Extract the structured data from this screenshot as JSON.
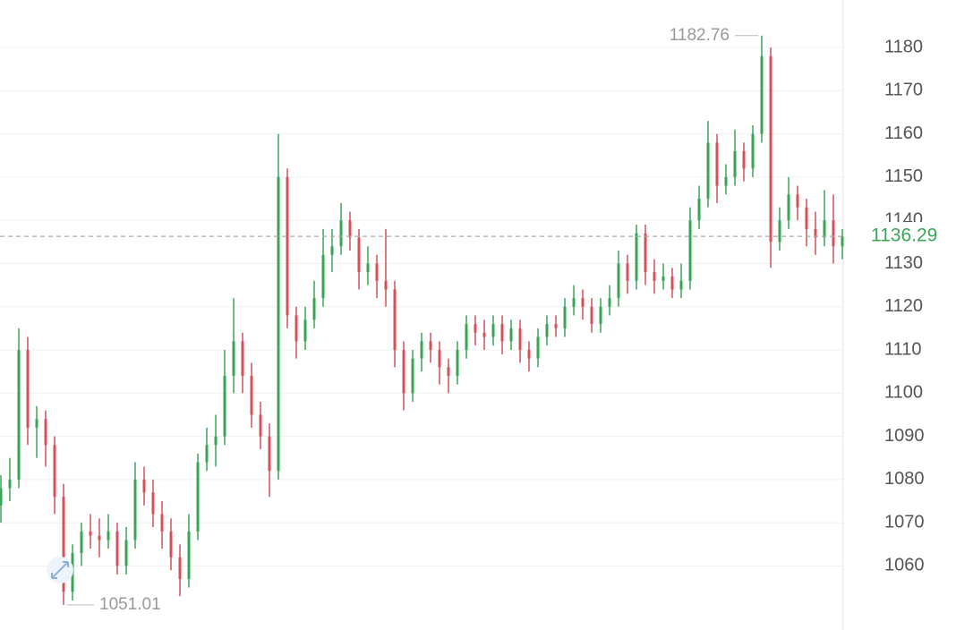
{
  "chart_data": {
    "type": "candlestick",
    "up_color": "#3aa655",
    "down_color": "#d4505a",
    "ylim": [
      1046,
      1191
    ],
    "yticks": [
      1060,
      1070,
      1080,
      1090,
      1100,
      1110,
      1120,
      1130,
      1140,
      1150,
      1160,
      1170,
      1180
    ],
    "grid": true,
    "candles": [
      [
        1074,
        1081,
        1070,
        1078
      ],
      [
        1078,
        1085,
        1075,
        1080
      ],
      [
        1080,
        1115,
        1078,
        1110
      ],
      [
        1110,
        1113,
        1088,
        1092
      ],
      [
        1092,
        1097,
        1085,
        1094
      ],
      [
        1094,
        1096,
        1083,
        1088
      ],
      [
        1088,
        1090,
        1072,
        1076
      ],
      [
        1076,
        1079,
        1051.01,
        1054
      ],
      [
        1054,
        1065,
        1052,
        1063
      ],
      [
        1063,
        1070,
        1060,
        1068
      ],
      [
        1068,
        1072,
        1064,
        1067
      ],
      [
        1067,
        1071,
        1062,
        1066
      ],
      [
        1066,
        1072,
        1064,
        1068
      ],
      [
        1068,
        1070,
        1058,
        1060
      ],
      [
        1060,
        1069,
        1058,
        1066
      ],
      [
        1066,
        1084,
        1064,
        1080
      ],
      [
        1080,
        1083,
        1074,
        1077
      ],
      [
        1077,
        1080,
        1069,
        1072
      ],
      [
        1072,
        1075,
        1064,
        1068
      ],
      [
        1068,
        1071,
        1059,
        1062
      ],
      [
        1062,
        1065,
        1053,
        1057
      ],
      [
        1057,
        1072,
        1055,
        1068
      ],
      [
        1068,
        1086,
        1066,
        1084
      ],
      [
        1084,
        1092,
        1082,
        1088
      ],
      [
        1088,
        1095,
        1083,
        1090
      ],
      [
        1090,
        1110,
        1088,
        1104
      ],
      [
        1104,
        1122,
        1100,
        1112
      ],
      [
        1112,
        1114,
        1100,
        1104
      ],
      [
        1104,
        1107,
        1092,
        1095
      ],
      [
        1095,
        1098,
        1087,
        1090
      ],
      [
        1090,
        1093,
        1076,
        1082
      ],
      [
        1082,
        1160,
        1080,
        1150
      ],
      [
        1150,
        1152,
        1115,
        1118
      ],
      [
        1118,
        1120,
        1108,
        1112
      ],
      [
        1112,
        1120,
        1110,
        1117
      ],
      [
        1117,
        1126,
        1115,
        1122
      ],
      [
        1122,
        1138,
        1120,
        1132
      ],
      [
        1132,
        1138,
        1128,
        1134
      ],
      [
        1134,
        1144,
        1132,
        1140
      ],
      [
        1140,
        1142,
        1133,
        1136
      ],
      [
        1136,
        1138,
        1124,
        1128
      ],
      [
        1128,
        1134,
        1125,
        1130
      ],
      [
        1130,
        1132,
        1122,
        1126
      ],
      [
        1126,
        1138,
        1120,
        1124
      ],
      [
        1124,
        1126,
        1106,
        1110
      ],
      [
        1110,
        1112,
        1096,
        1100
      ],
      [
        1100,
        1110,
        1098,
        1108
      ],
      [
        1108,
        1114,
        1105,
        1112
      ],
      [
        1112,
        1114,
        1107,
        1110
      ],
      [
        1110,
        1112,
        1102,
        1106
      ],
      [
        1106,
        1108,
        1100,
        1104
      ],
      [
        1104,
        1112,
        1102,
        1110
      ],
      [
        1110,
        1118,
        1108,
        1116
      ],
      [
        1116,
        1118,
        1111,
        1114
      ],
      [
        1114,
        1117,
        1110,
        1113
      ],
      [
        1113,
        1118,
        1111,
        1116
      ],
      [
        1116,
        1118,
        1109,
        1112
      ],
      [
        1112,
        1117,
        1110,
        1115
      ],
      [
        1115,
        1117,
        1107,
        1110
      ],
      [
        1110,
        1112,
        1105,
        1108
      ],
      [
        1108,
        1115,
        1106,
        1113
      ],
      [
        1113,
        1118,
        1111,
        1116
      ],
      [
        1116,
        1118,
        1113,
        1115
      ],
      [
        1115,
        1122,
        1113,
        1120
      ],
      [
        1120,
        1125,
        1118,
        1122
      ],
      [
        1122,
        1124,
        1117,
        1120
      ],
      [
        1120,
        1122,
        1114,
        1116
      ],
      [
        1116,
        1122,
        1114,
        1120
      ],
      [
        1120,
        1125,
        1118,
        1122
      ],
      [
        1122,
        1133,
        1120,
        1130
      ],
      [
        1130,
        1132,
        1123,
        1126
      ],
      [
        1126,
        1139,
        1124,
        1137
      ],
      [
        1137,
        1139,
        1125,
        1128
      ],
      [
        1128,
        1131,
        1123,
        1126
      ],
      [
        1126,
        1130,
        1124,
        1127
      ],
      [
        1127,
        1129,
        1122,
        1124
      ],
      [
        1124,
        1130,
        1122,
        1126
      ],
      [
        1126,
        1143,
        1124,
        1140
      ],
      [
        1140,
        1148,
        1138,
        1145
      ],
      [
        1145,
        1163,
        1143,
        1158
      ],
      [
        1158,
        1160,
        1144,
        1148
      ],
      [
        1148,
        1153,
        1146,
        1150
      ],
      [
        1150,
        1161,
        1148,
        1156
      ],
      [
        1156,
        1158,
        1149,
        1152
      ],
      [
        1152,
        1162,
        1150,
        1160
      ],
      [
        1160,
        1182.76,
        1158,
        1178
      ],
      [
        1178,
        1180,
        1129,
        1135
      ],
      [
        1135,
        1143,
        1133,
        1140
      ],
      [
        1140,
        1150,
        1138,
        1146
      ],
      [
        1146,
        1148,
        1140,
        1143
      ],
      [
        1143,
        1145,
        1134,
        1138
      ],
      [
        1138,
        1142,
        1132,
        1136
      ],
      [
        1136,
        1147,
        1134,
        1140
      ],
      [
        1140,
        1146,
        1130,
        1134
      ],
      [
        1134,
        1138,
        1131,
        1136.29
      ]
    ]
  }
}
